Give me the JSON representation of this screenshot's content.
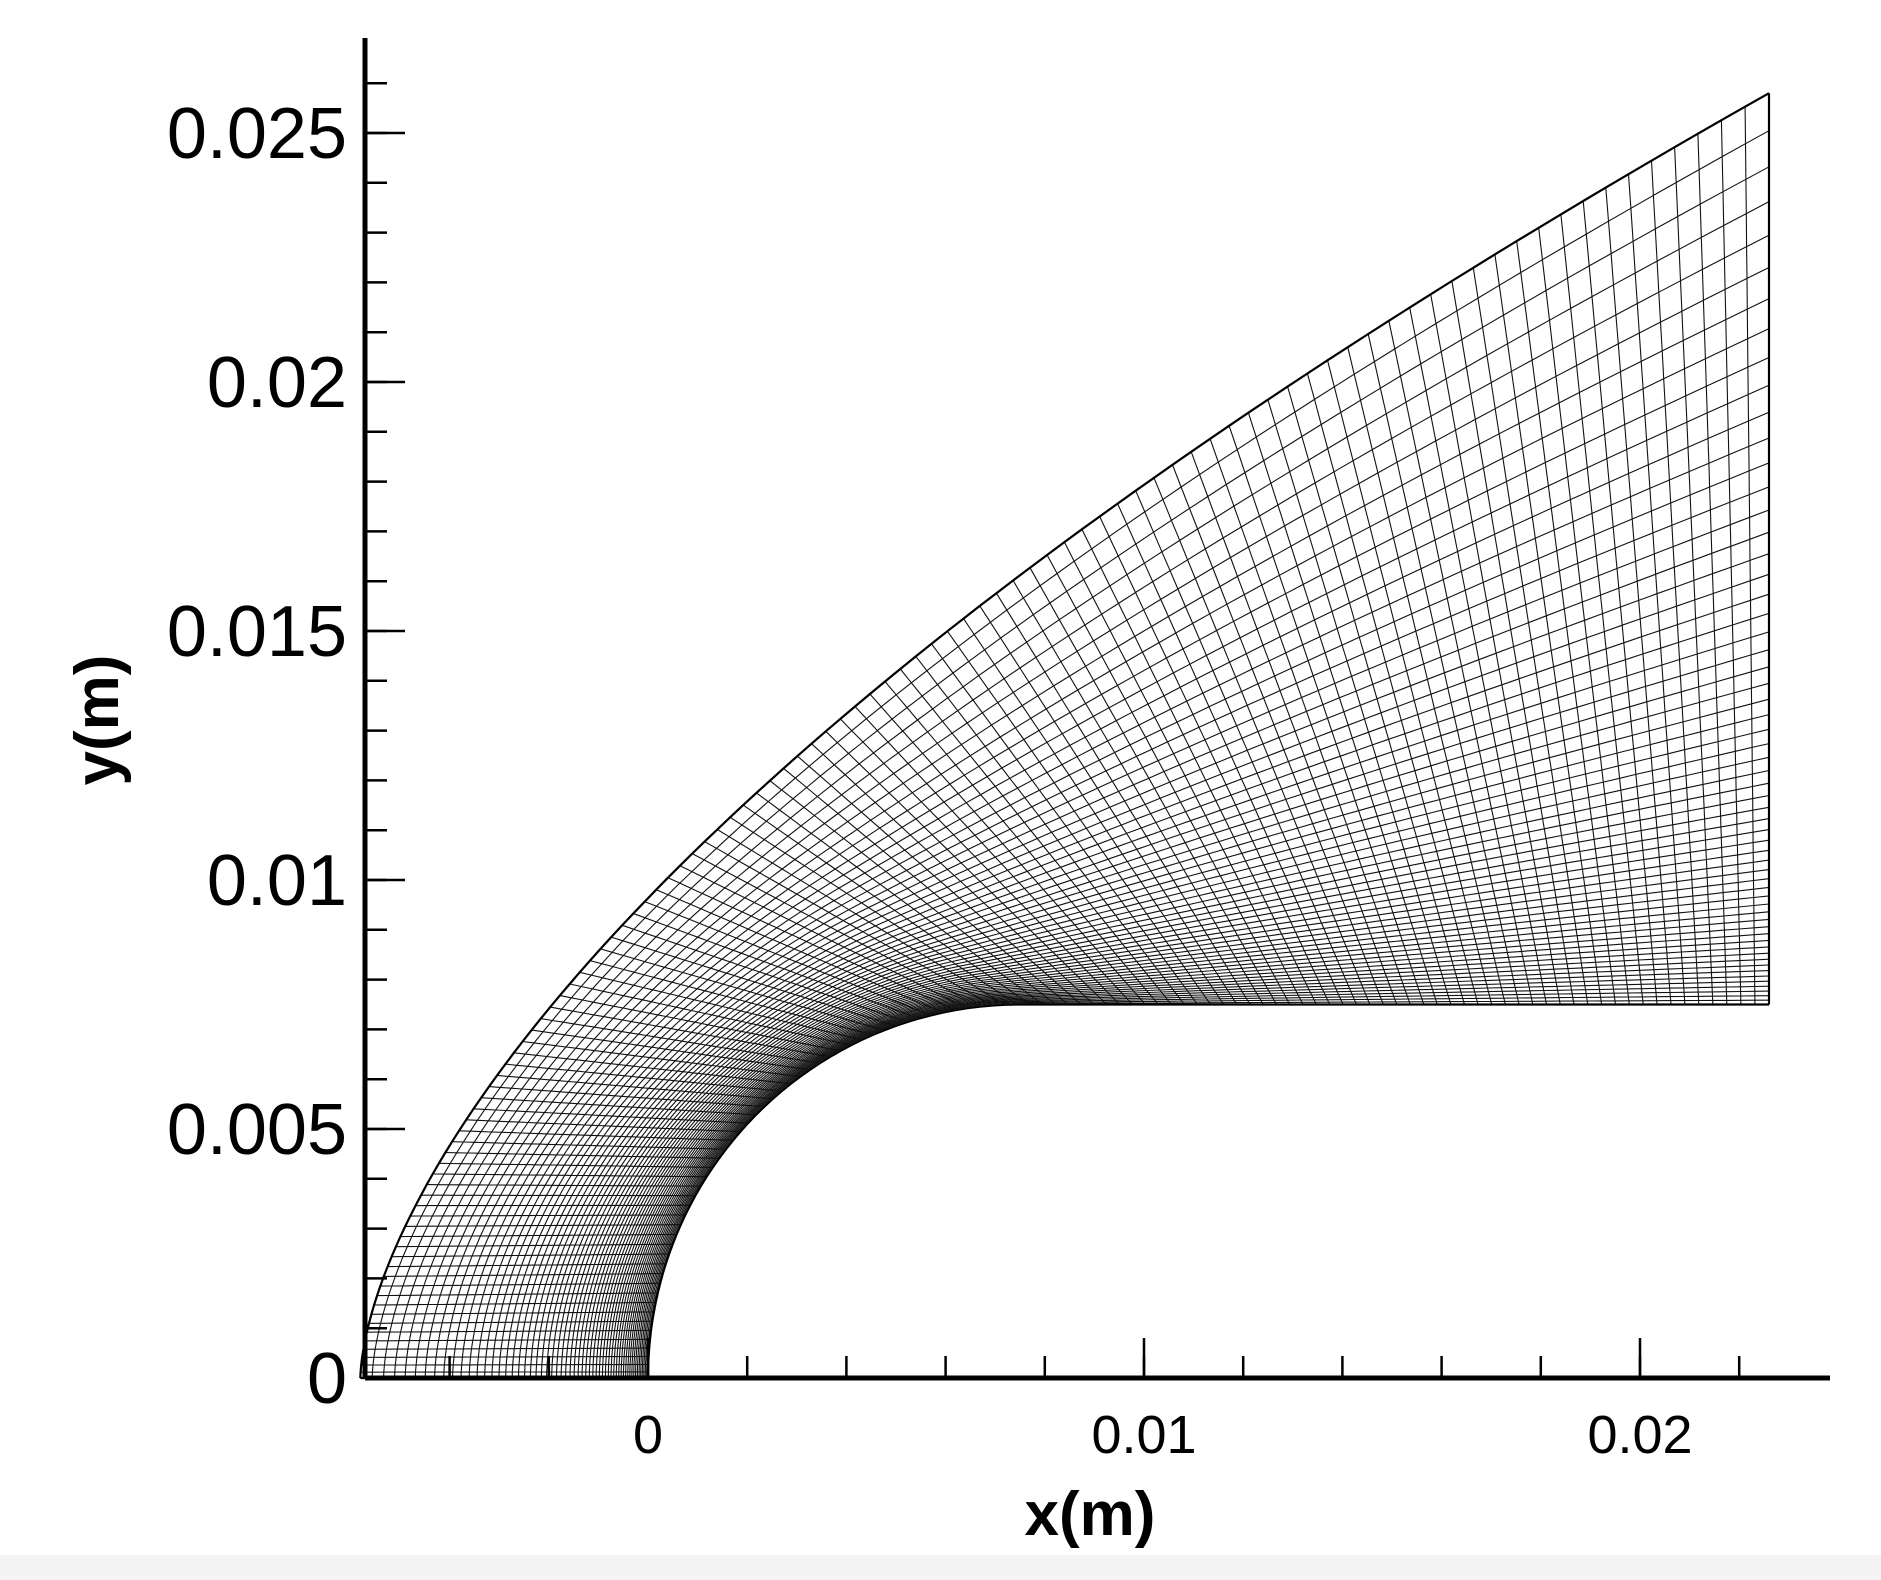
{
  "chart_data": {
    "type": "scatter",
    "title": "",
    "xlabel": "x(m)",
    "ylabel": "y(m)",
    "xlim": [
      -0.0058,
      0.0238
    ],
    "ylim": [
      0,
      0.027
    ],
    "x_ticks": [
      {
        "value": 0,
        "label": "0"
      },
      {
        "value": 0.01,
        "label": "0.01"
      },
      {
        "value": 0.02,
        "label": "0.02"
      }
    ],
    "y_ticks": [
      {
        "value": 0,
        "label": "0"
      },
      {
        "value": 0.005,
        "label": "0.005"
      },
      {
        "value": 0.01,
        "label": "0.01"
      },
      {
        "value": 0.015,
        "label": "0.015"
      },
      {
        "value": 0.02,
        "label": "0.02"
      },
      {
        "value": 0.025,
        "label": "0.025"
      }
    ],
    "x_minor_step": 0.002,
    "y_minor_step": 0.001,
    "grid": false,
    "legend": "none",
    "mesh": {
      "description_kind": "structured computational grid",
      "body_nose_radius": 0.0075,
      "body_flat_height": 0.0075,
      "body_end_x": 0.0226,
      "outer_boundary_nose_x": -0.0058,
      "outer_boundary_end_y": 0.0258,
      "outer_boundary_exponent": 0.62,
      "streamwise_lines": 110,
      "wall_normal_lines": 60,
      "color": "#111111"
    }
  }
}
